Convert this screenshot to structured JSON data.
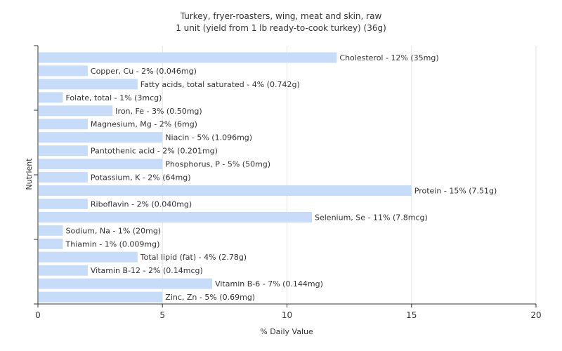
{
  "chart_data": {
    "type": "bar",
    "orientation": "horizontal",
    "title": "Turkey, fryer-roasters, wing, meat and skin, raw",
    "subtitle": "1 unit (yield from 1 lb ready-to-cook turkey) (36g)",
    "xlabel": "% Daily Value",
    "ylabel": "Nutrient",
    "xlim": [
      0,
      20
    ],
    "xticks": [
      "0",
      "5",
      "10",
      "15",
      "20"
    ],
    "grid": "vertical",
    "bar_color": "#c6dcf9",
    "categories": [
      "Cholesterol",
      "Copper, Cu",
      "Fatty acids, total saturated",
      "Folate, total",
      "Iron, Fe",
      "Magnesium, Mg",
      "Niacin",
      "Pantothenic acid",
      "Phosphorus, P",
      "Potassium, K",
      "Protein",
      "Riboflavin",
      "Selenium, Se",
      "Sodium, Na",
      "Thiamin",
      "Total lipid (fat)",
      "Vitamin B-12",
      "Vitamin B-6",
      "Zinc, Zn"
    ],
    "values": [
      12,
      2,
      4,
      1,
      3,
      2,
      5,
      2,
      5,
      2,
      15,
      2,
      11,
      1,
      1,
      4,
      2,
      7,
      5
    ],
    "labels": [
      "Cholesterol - 12% (35mg)",
      "Copper, Cu - 2% (0.046mg)",
      "Fatty acids, total saturated - 4% (0.742g)",
      "Folate, total - 1% (3mcg)",
      "Iron, Fe - 3% (0.50mg)",
      "Magnesium, Mg - 2% (6mg)",
      "Niacin - 5% (1.096mg)",
      "Pantothenic acid - 2% (0.201mg)",
      "Phosphorus, P - 5% (50mg)",
      "Potassium, K - 2% (64mg)",
      "Protein - 15% (7.51g)",
      "Riboflavin - 2% (0.040mg)",
      "Selenium, Se - 11% (7.8mcg)",
      "Sodium, Na - 1% (20mg)",
      "Thiamin - 1% (0.009mg)",
      "Total lipid (fat) - 4% (2.78g)",
      "Vitamin B-12 - 2% (0.14mcg)",
      "Vitamin B-6 - 7% (0.144mg)",
      "Zinc, Zn - 5% (0.69mg)"
    ]
  }
}
